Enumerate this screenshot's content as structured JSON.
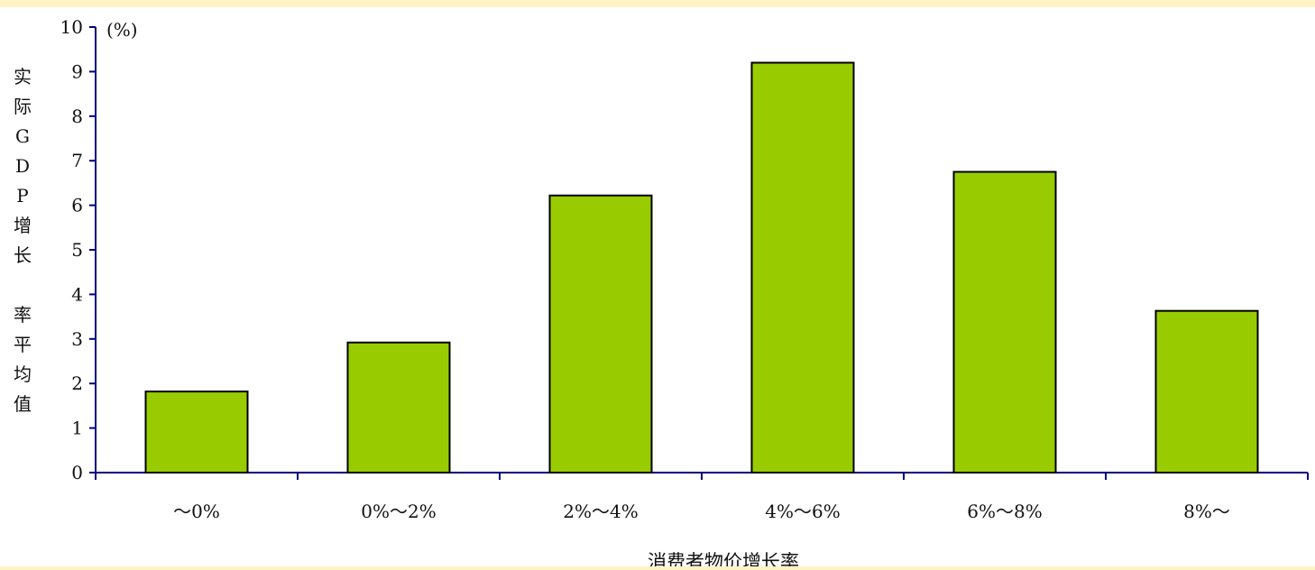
{
  "chart_data": {
    "type": "bar",
    "categories": [
      "～0%",
      "0%～2%",
      "2%～4%",
      "4%～6%",
      "6%～8%",
      "8%～"
    ],
    "values": [
      1.82,
      2.92,
      6.22,
      9.2,
      6.75,
      3.63
    ],
    "ylim": [
      0,
      10
    ],
    "yticks": [
      0,
      1,
      2,
      3,
      4,
      5,
      6,
      7,
      8,
      9,
      10
    ],
    "ylabel": "实际GDP增长率平均值",
    "y_unit": "(%)",
    "xlabel": "消费者物价增长率",
    "grid": false,
    "colors": {
      "bar_fill": "#99cc00",
      "bar_stroke": "#000000",
      "axis": "#000080",
      "background": "#ffffff",
      "frame": "#fdf4c6"
    }
  }
}
